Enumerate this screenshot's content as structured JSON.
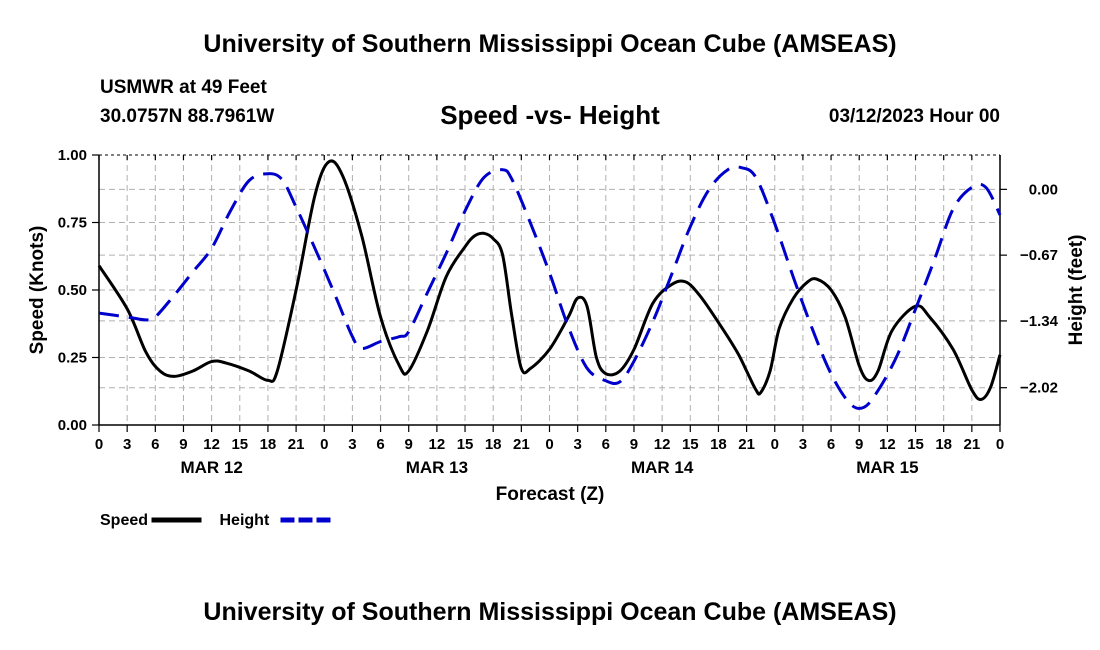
{
  "header": {
    "title": "University of Southern Mississippi Ocean Cube (AMSEAS)",
    "station": "USMWR at 49 Feet",
    "coords": "30.0757N  88.7961W",
    "subtitle": "Speed -vs- Height",
    "datetime": "03/12/2023 Hour 00",
    "footer_title": "University of Southern Mississippi Ocean Cube (AMSEAS)"
  },
  "colors": {
    "speed": "#000000",
    "height": "#0000cc",
    "grid": "#b0b0b0"
  },
  "chart_data": {
    "type": "line",
    "title": "Speed -vs- Height",
    "xlabel": "Forecast (Z)",
    "ylabel": "Speed (Knots)",
    "y2label": "Height (feet)",
    "x_range_hours": [
      0,
      96
    ],
    "ylim": [
      0,
      1
    ],
    "y2lim": [
      -2.4,
      0.35
    ],
    "x_ticks": [
      {
        "h": 0,
        "label": "0"
      },
      {
        "h": 3,
        "label": "3"
      },
      {
        "h": 6,
        "label": "6"
      },
      {
        "h": 9,
        "label": "9"
      },
      {
        "h": 12,
        "label": "12"
      },
      {
        "h": 15,
        "label": "15"
      },
      {
        "h": 18,
        "label": "18"
      },
      {
        "h": 21,
        "label": "21"
      },
      {
        "h": 24,
        "label": "0"
      },
      {
        "h": 27,
        "label": "3"
      },
      {
        "h": 30,
        "label": "6"
      },
      {
        "h": 33,
        "label": "9"
      },
      {
        "h": 36,
        "label": "12"
      },
      {
        "h": 39,
        "label": "15"
      },
      {
        "h": 42,
        "label": "18"
      },
      {
        "h": 45,
        "label": "21"
      },
      {
        "h": 48,
        "label": "0"
      },
      {
        "h": 51,
        "label": "3"
      },
      {
        "h": 54,
        "label": "6"
      },
      {
        "h": 57,
        "label": "9"
      },
      {
        "h": 60,
        "label": "12"
      },
      {
        "h": 63,
        "label": "15"
      },
      {
        "h": 66,
        "label": "18"
      },
      {
        "h": 69,
        "label": "21"
      },
      {
        "h": 72,
        "label": "0"
      },
      {
        "h": 75,
        "label": "3"
      },
      {
        "h": 78,
        "label": "6"
      },
      {
        "h": 81,
        "label": "9"
      },
      {
        "h": 84,
        "label": "12"
      },
      {
        "h": 87,
        "label": "15"
      },
      {
        "h": 90,
        "label": "18"
      },
      {
        "h": 93,
        "label": "21"
      },
      {
        "h": 96,
        "label": "0"
      }
    ],
    "day_labels": [
      {
        "h": 12,
        "label": "MAR 12"
      },
      {
        "h": 36,
        "label": "MAR 13"
      },
      {
        "h": 60,
        "label": "MAR 14"
      },
      {
        "h": 84,
        "label": "MAR 15"
      }
    ],
    "y_ticks": [
      {
        "v": 0,
        "label": "0.00"
      },
      {
        "v": 0.25,
        "label": "0.25"
      },
      {
        "v": 0.5,
        "label": "0.50"
      },
      {
        "v": 0.75,
        "label": "0.75"
      },
      {
        "v": 1,
        "label": "1.00"
      }
    ],
    "y2_ticks": [
      {
        "v": 0,
        "label": "0.00"
      },
      {
        "v": -0.67,
        "label": "−0.67"
      },
      {
        "v": -1.34,
        "label": "−1.34"
      },
      {
        "v": -2.02,
        "label": "−2.02"
      }
    ],
    "series": [
      {
        "name": "Speed",
        "axis": "left",
        "style": "solid",
        "points": [
          [
            0,
            0.59
          ],
          [
            3,
            0.43
          ],
          [
            5,
            0.27
          ],
          [
            6.5,
            0.2
          ],
          [
            8,
            0.18
          ],
          [
            10,
            0.2
          ],
          [
            12,
            0.235
          ],
          [
            13.5,
            0.23
          ],
          [
            16,
            0.2
          ],
          [
            18,
            0.165
          ],
          [
            19,
            0.2
          ],
          [
            21,
            0.5
          ],
          [
            23,
            0.85
          ],
          [
            24.5,
            0.975
          ],
          [
            26,
            0.92
          ],
          [
            28,
            0.7
          ],
          [
            30,
            0.4
          ],
          [
            32,
            0.22
          ],
          [
            33,
            0.2
          ],
          [
            35,
            0.35
          ],
          [
            37,
            0.55
          ],
          [
            39,
            0.66
          ],
          [
            40,
            0.7
          ],
          [
            41,
            0.71
          ],
          [
            42,
            0.69
          ],
          [
            43,
            0.63
          ],
          [
            44,
            0.4
          ],
          [
            45,
            0.21
          ],
          [
            46,
            0.21
          ],
          [
            48,
            0.28
          ],
          [
            50,
            0.4
          ],
          [
            51,
            0.47
          ],
          [
            52,
            0.44
          ],
          [
            53,
            0.25
          ],
          [
            54,
            0.19
          ],
          [
            55.5,
            0.2
          ],
          [
            57,
            0.28
          ],
          [
            59,
            0.45
          ],
          [
            61,
            0.52
          ],
          [
            62.5,
            0.53
          ],
          [
            64,
            0.48
          ],
          [
            66,
            0.38
          ],
          [
            68,
            0.27
          ],
          [
            69,
            0.2
          ],
          [
            70,
            0.13
          ],
          [
            70.5,
            0.12
          ],
          [
            71.5,
            0.2
          ],
          [
            72.5,
            0.36
          ],
          [
            74,
            0.47
          ],
          [
            75.5,
            0.53
          ],
          [
            76.5,
            0.54
          ],
          [
            78,
            0.5
          ],
          [
            79.5,
            0.4
          ],
          [
            81,
            0.22
          ],
          [
            82,
            0.165
          ],
          [
            83,
            0.2
          ],
          [
            84.5,
            0.35
          ],
          [
            87,
            0.44
          ],
          [
            88.5,
            0.4
          ],
          [
            91,
            0.28
          ],
          [
            93,
            0.13
          ],
          [
            94,
            0.095
          ],
          [
            95,
            0.14
          ],
          [
            96,
            0.26
          ]
        ]
      },
      {
        "name": "Height",
        "axis": "right",
        "style": "dashed",
        "points": [
          [
            0,
            -1.26
          ],
          [
            3,
            -1.3
          ],
          [
            5,
            -1.33
          ],
          [
            6,
            -1.3
          ],
          [
            8,
            -1.08
          ],
          [
            10,
            -0.84
          ],
          [
            12,
            -0.6
          ],
          [
            14,
            -0.22
          ],
          [
            16,
            0.09
          ],
          [
            18,
            0.16
          ],
          [
            19.5,
            0.1
          ],
          [
            21,
            -0.18
          ],
          [
            23,
            -0.6
          ],
          [
            25,
            -1.04
          ],
          [
            27,
            -1.5
          ],
          [
            28,
            -1.62
          ],
          [
            30,
            -1.55
          ],
          [
            32,
            -1.5
          ],
          [
            33,
            -1.45
          ],
          [
            35,
            -1.05
          ],
          [
            37,
            -0.65
          ],
          [
            39,
            -0.22
          ],
          [
            41,
            0.12
          ],
          [
            43,
            0.2
          ],
          [
            44,
            0.1
          ],
          [
            46,
            -0.35
          ],
          [
            48,
            -0.85
          ],
          [
            50,
            -1.4
          ],
          [
            52,
            -1.82
          ],
          [
            54,
            -1.95
          ],
          [
            55.5,
            -1.96
          ],
          [
            57,
            -1.75
          ],
          [
            59,
            -1.35
          ],
          [
            61,
            -0.87
          ],
          [
            63,
            -0.38
          ],
          [
            65,
            0
          ],
          [
            67,
            0.2
          ],
          [
            68.5,
            0.22
          ],
          [
            70,
            0.12
          ],
          [
            72,
            -0.35
          ],
          [
            74,
            -0.9
          ],
          [
            76,
            -1.42
          ],
          [
            78,
            -1.88
          ],
          [
            80,
            -2.18
          ],
          [
            81.5,
            -2.22
          ],
          [
            83,
            -2.05
          ],
          [
            85,
            -1.7
          ],
          [
            87,
            -1.22
          ],
          [
            89,
            -0.72
          ],
          [
            91,
            -0.2
          ],
          [
            93,
            0.02
          ],
          [
            94.5,
            0.02
          ],
          [
            96,
            -0.26
          ]
        ]
      }
    ],
    "legend": {
      "position": "bottom-left",
      "entries": [
        {
          "label": "Speed",
          "series": "Speed"
        },
        {
          "label": "Height",
          "series": "Height"
        }
      ]
    }
  }
}
